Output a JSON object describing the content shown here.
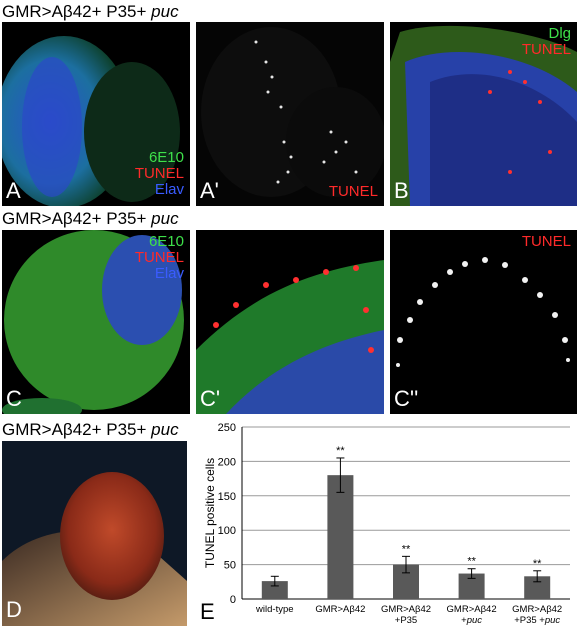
{
  "titles": [
    {
      "prefix": "GMR>Aβ42+ P35+ ",
      "italic": "puc"
    },
    {
      "prefix": "GMR>Aβ42+ P35+ ",
      "italic": "puc"
    },
    {
      "prefix": "GMR>Aβ42+ P35+ ",
      "italic": "puc"
    }
  ],
  "panels": {
    "A": {
      "label": "A",
      "stain1": "6E10",
      "stain2": "TUNEL",
      "stain3": "Elav"
    },
    "A2": {
      "label": "A'",
      "stain": "TUNEL"
    },
    "B": {
      "label": "B",
      "stain1": "Dlg",
      "stain2": "TUNEL"
    },
    "C": {
      "label": "C",
      "stain1": "6E10",
      "stain2": "TUNEL",
      "stain3": "Elav"
    },
    "C2": {
      "label": "C'"
    },
    "C3": {
      "label": "C''",
      "stain": "TUNEL"
    },
    "D": {
      "label": "D"
    },
    "E": {
      "label": "E"
    }
  },
  "colors": {
    "green": "#3ee04a",
    "red": "#ff2a2a",
    "blue": "#3a5cff",
    "bar": "#595959"
  },
  "chart_data": {
    "type": "bar",
    "categories": [
      [
        "wild-type"
      ],
      [
        "GMR>Aβ42"
      ],
      [
        "GMR>Aβ42",
        "+P35"
      ],
      [
        "GMR>Aβ42",
        "+puc"
      ],
      [
        "GMR>Aβ42",
        "+P35 +puc"
      ]
    ],
    "values": [
      26,
      180,
      50,
      37,
      33
    ],
    "errors": [
      7,
      25,
      12,
      7,
      8
    ],
    "significance": [
      "",
      "**",
      "**",
      "**",
      "**"
    ],
    "ylabel": "TUNEL positive cells",
    "ylim": [
      0,
      250
    ],
    "yticks": [
      0,
      50,
      100,
      150,
      200,
      250
    ],
    "grid": true
  }
}
